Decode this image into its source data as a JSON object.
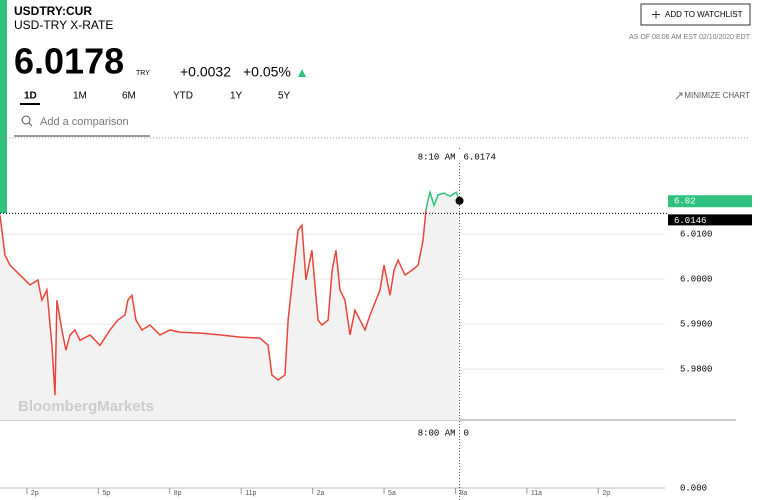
{
  "header": {
    "symbol": "USDTRY:CUR",
    "name": "USD-TRY X-RATE",
    "price": "6.0178",
    "currency": "TRY",
    "change": "+0.0032",
    "change_pct": "+0.05%",
    "watchlist_button": "ADD TO WATCHLIST",
    "as_of": "AS OF 08:06 AM EST 02/10/2020 EDT",
    "ranges": [
      "1D",
      "1M",
      "6M",
      "YTD",
      "1Y",
      "5Y"
    ],
    "minimize": "MINIMIZE CHART",
    "comparison_placeholder": "Add a comparison",
    "watermark": "BloombergMarkets"
  },
  "chart_data": {
    "type": "line",
    "x": [
      -1.13,
      -0.92,
      -0.71,
      -0.29,
      0.13,
      0.46,
      0.63,
      0.84,
      1.05,
      1.18,
      1.26,
      1.47,
      1.64,
      1.81,
      2.02,
      2.23,
      2.65,
      3.07,
      3.49,
      3.82,
      4.12,
      4.24,
      4.41,
      4.58,
      4.83,
      5.17,
      5.59,
      6.01,
      6.43,
      7.27,
      8.11,
      8.95,
      9.79,
      10.13,
      10.29,
      10.55,
      10.84,
      10.97,
      11.13,
      11.39,
      11.55,
      11.72,
      11.97,
      12.23,
      12.39,
      12.65,
      12.82,
      12.98,
      13.15,
      13.36,
      13.57,
      13.78,
      13.99,
      14.2,
      14.41,
      14.66,
      14.83,
      15.0,
      15.25,
      15.42,
      15.59,
      15.88,
      16.18,
      16.43,
      16.64,
      16.76,
      16.85,
      16.93,
      17.1,
      17.27,
      17.52,
      17.77,
      18.03,
      18.17
    ],
    "series": [
      {
        "color": "#e8463a",
        "values": [
          6.0142,
          6.0053,
          6.0031,
          6.0009,
          5.9987,
          5.9998,
          5.9953,
          5.9976,
          5.9853,
          5.9742,
          5.9953,
          5.9887,
          5.9842,
          5.9876,
          5.9887,
          5.9864,
          5.9876,
          5.9853,
          5.9887,
          5.9909,
          5.992,
          5.9953,
          5.9964,
          5.9909,
          5.9887,
          5.9898,
          5.9876,
          5.9887,
          5.9882,
          5.988,
          5.9876,
          5.9871,
          5.9869,
          5.9853,
          5.9787,
          5.9776,
          5.9787,
          5.9909,
          5.9987,
          6.0109,
          6.012,
          5.9998,
          6.0064,
          5.9909,
          5.9898,
          5.9909,
          6.002,
          6.0064,
          5.9976,
          5.9953,
          5.9876,
          5.9931,
          5.9909,
          5.9887,
          5.992,
          5.9953,
          5.9976,
          6.0031,
          5.9964,
          6.002,
          6.0042,
          6.0009,
          6.002,
          6.0031,
          6.0087,
          6.0153,
          null,
          null,
          null,
          null,
          null,
          null,
          null,
          null
        ]
      },
      {
        "color": "#2ec27e",
        "values": [
          null,
          null,
          null,
          null,
          null,
          null,
          null,
          null,
          null,
          null,
          null,
          null,
          null,
          null,
          null,
          null,
          null,
          null,
          null,
          null,
          null,
          null,
          null,
          null,
          null,
          null,
          null,
          null,
          null,
          null,
          null,
          null,
          null,
          null,
          null,
          null,
          null,
          null,
          null,
          null,
          null,
          null,
          null,
          null,
          null,
          null,
          null,
          null,
          null,
          null,
          null,
          null,
          null,
          null,
          null,
          null,
          null,
          null,
          null,
          null,
          null,
          null,
          null,
          null,
          null,
          6.0153,
          6.0176,
          6.0193,
          6.0164,
          6.0187,
          6.0191,
          6.0184,
          6.0193,
          6.0174
        ]
      }
    ],
    "xlim": [
      -1.13,
      26.8
    ],
    "xticks": [
      {
        "value": 0,
        "label": "2p"
      },
      {
        "value": 3,
        "label": "5p"
      },
      {
        "value": 6,
        "label": "8p"
      },
      {
        "value": 9,
        "label": "11p"
      },
      {
        "value": 12,
        "label": "2a"
      },
      {
        "value": 15,
        "label": "5a"
      },
      {
        "value": 18,
        "label": "8a"
      },
      {
        "value": 21,
        "label": "11a"
      },
      {
        "value": 24,
        "label": "2p"
      }
    ],
    "ylim": [
      5.9687,
      6.0309
    ],
    "yticks": [
      {
        "value": 6.01,
        "label": "6.0100"
      },
      {
        "value": 6.0,
        "label": "6.0000"
      },
      {
        "value": 5.99,
        "label": "5.9900"
      },
      {
        "value": 5.98,
        "label": "5.9800"
      }
    ],
    "grid": true,
    "previous_close": 6.0146,
    "current_label": {
      "value": 6.0173,
      "label": "6.02"
    },
    "crosshair": {
      "x": 18.17,
      "time": "8:10 AM",
      "value": 6.0174,
      "lower_time": "8:00 AM",
      "lower_value": 0
    },
    "lower_axis_label": "0.000"
  }
}
